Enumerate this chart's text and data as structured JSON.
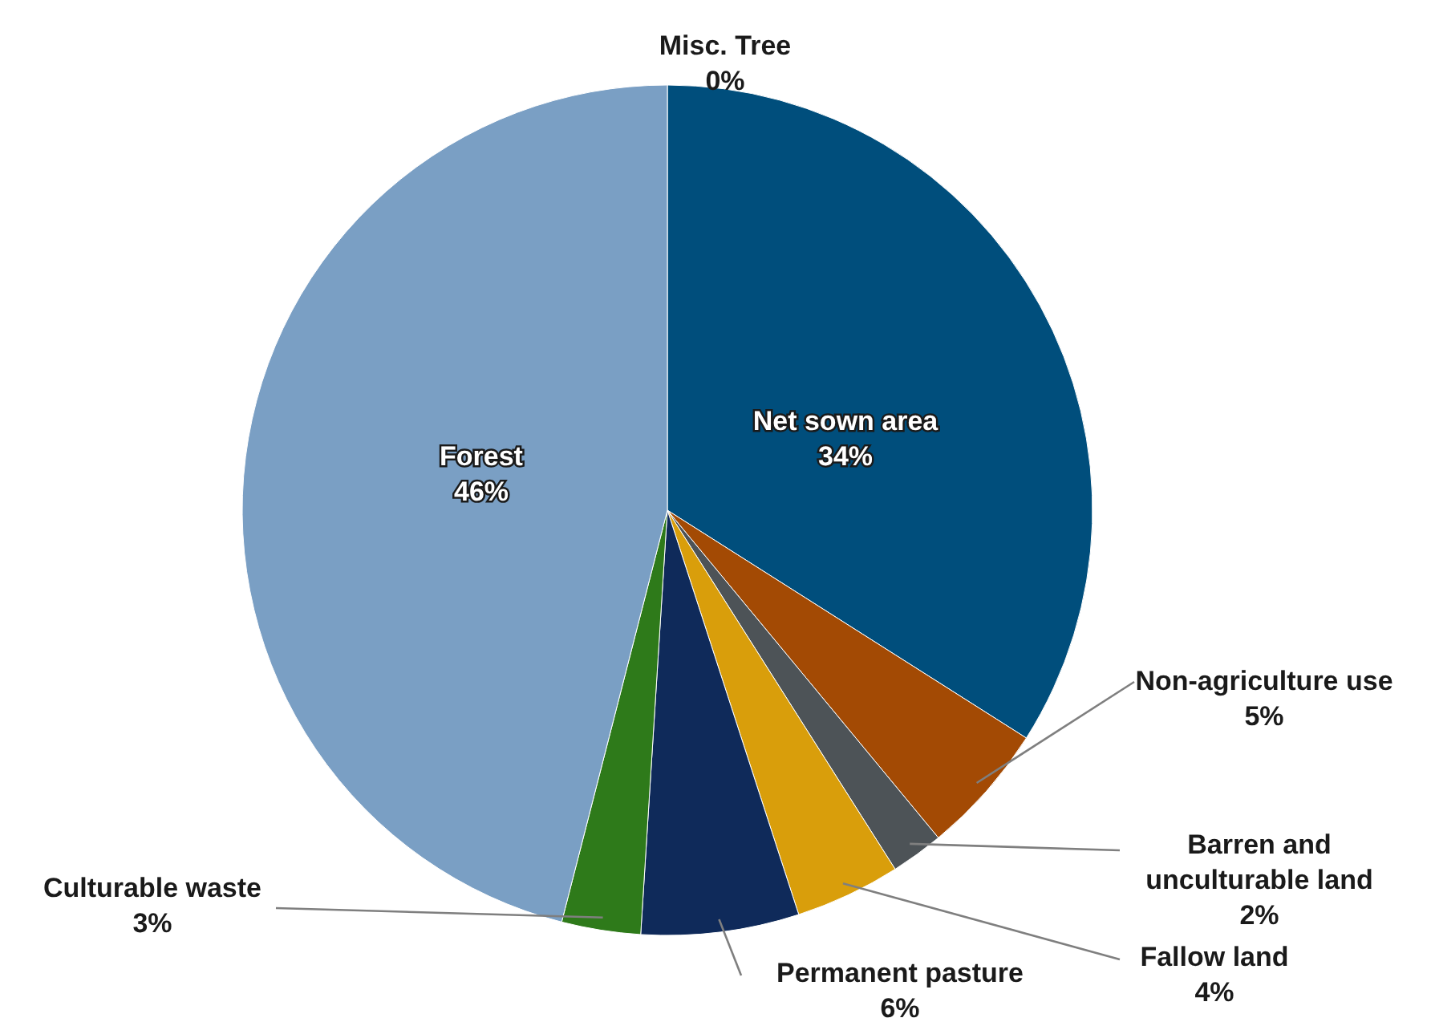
{
  "chart_data": {
    "type": "pie",
    "categories": [
      "Misc. Tree",
      "Net sown area",
      "Non-agriculture use",
      "Barren and unculturable land",
      "Fallow land",
      "Permanent pasture",
      "Culturable waste",
      "Forest"
    ],
    "values": [
      0,
      34,
      5,
      2,
      4,
      6,
      3,
      46
    ],
    "colors": [
      "#7f7f7f",
      "#004e7c",
      "#a34a04",
      "#4d5357",
      "#d99e0b",
      "#0f2a5a",
      "#2e7a1a",
      "#7a9fc4"
    ],
    "value_labels": [
      "0%",
      "34%",
      "5%",
      "2%",
      "4%",
      "6%",
      "3%",
      "46%"
    ]
  }
}
